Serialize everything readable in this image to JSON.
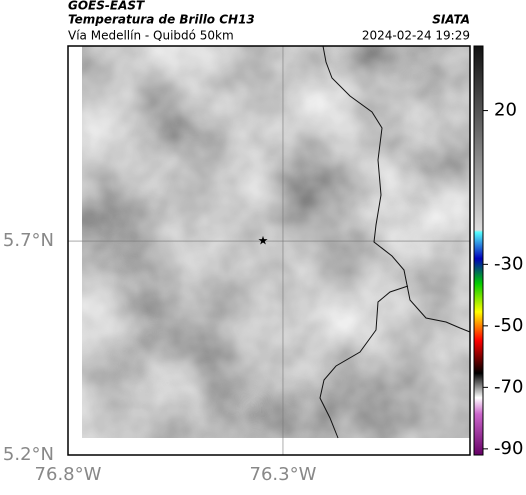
{
  "header": {
    "source": "GOES-EAST",
    "title": "Temperatura de Brillo CH13",
    "subtitle": "Vía Medellín - Quibdó 50km",
    "org": "SIATA",
    "datetime": "2024-02-24 19:29"
  },
  "map": {
    "lon_range": [
      -76.8,
      -75.865
    ],
    "lat_range": [
      5.2,
      6.156
    ],
    "lon_ticks": [
      {
        "value": -76.8,
        "label": "76.8°W"
      },
      {
        "value": -76.3,
        "label": "76.3°W"
      }
    ],
    "lat_ticks": [
      {
        "value": 5.7,
        "label": "5.7°N"
      },
      {
        "value": 5.2,
        "label": "5.2°N"
      }
    ]
  },
  "colorbar": {
    "range": [
      -92,
      41
    ],
    "ticks": [
      20,
      -30,
      -50,
      -70,
      -90
    ]
  }
}
